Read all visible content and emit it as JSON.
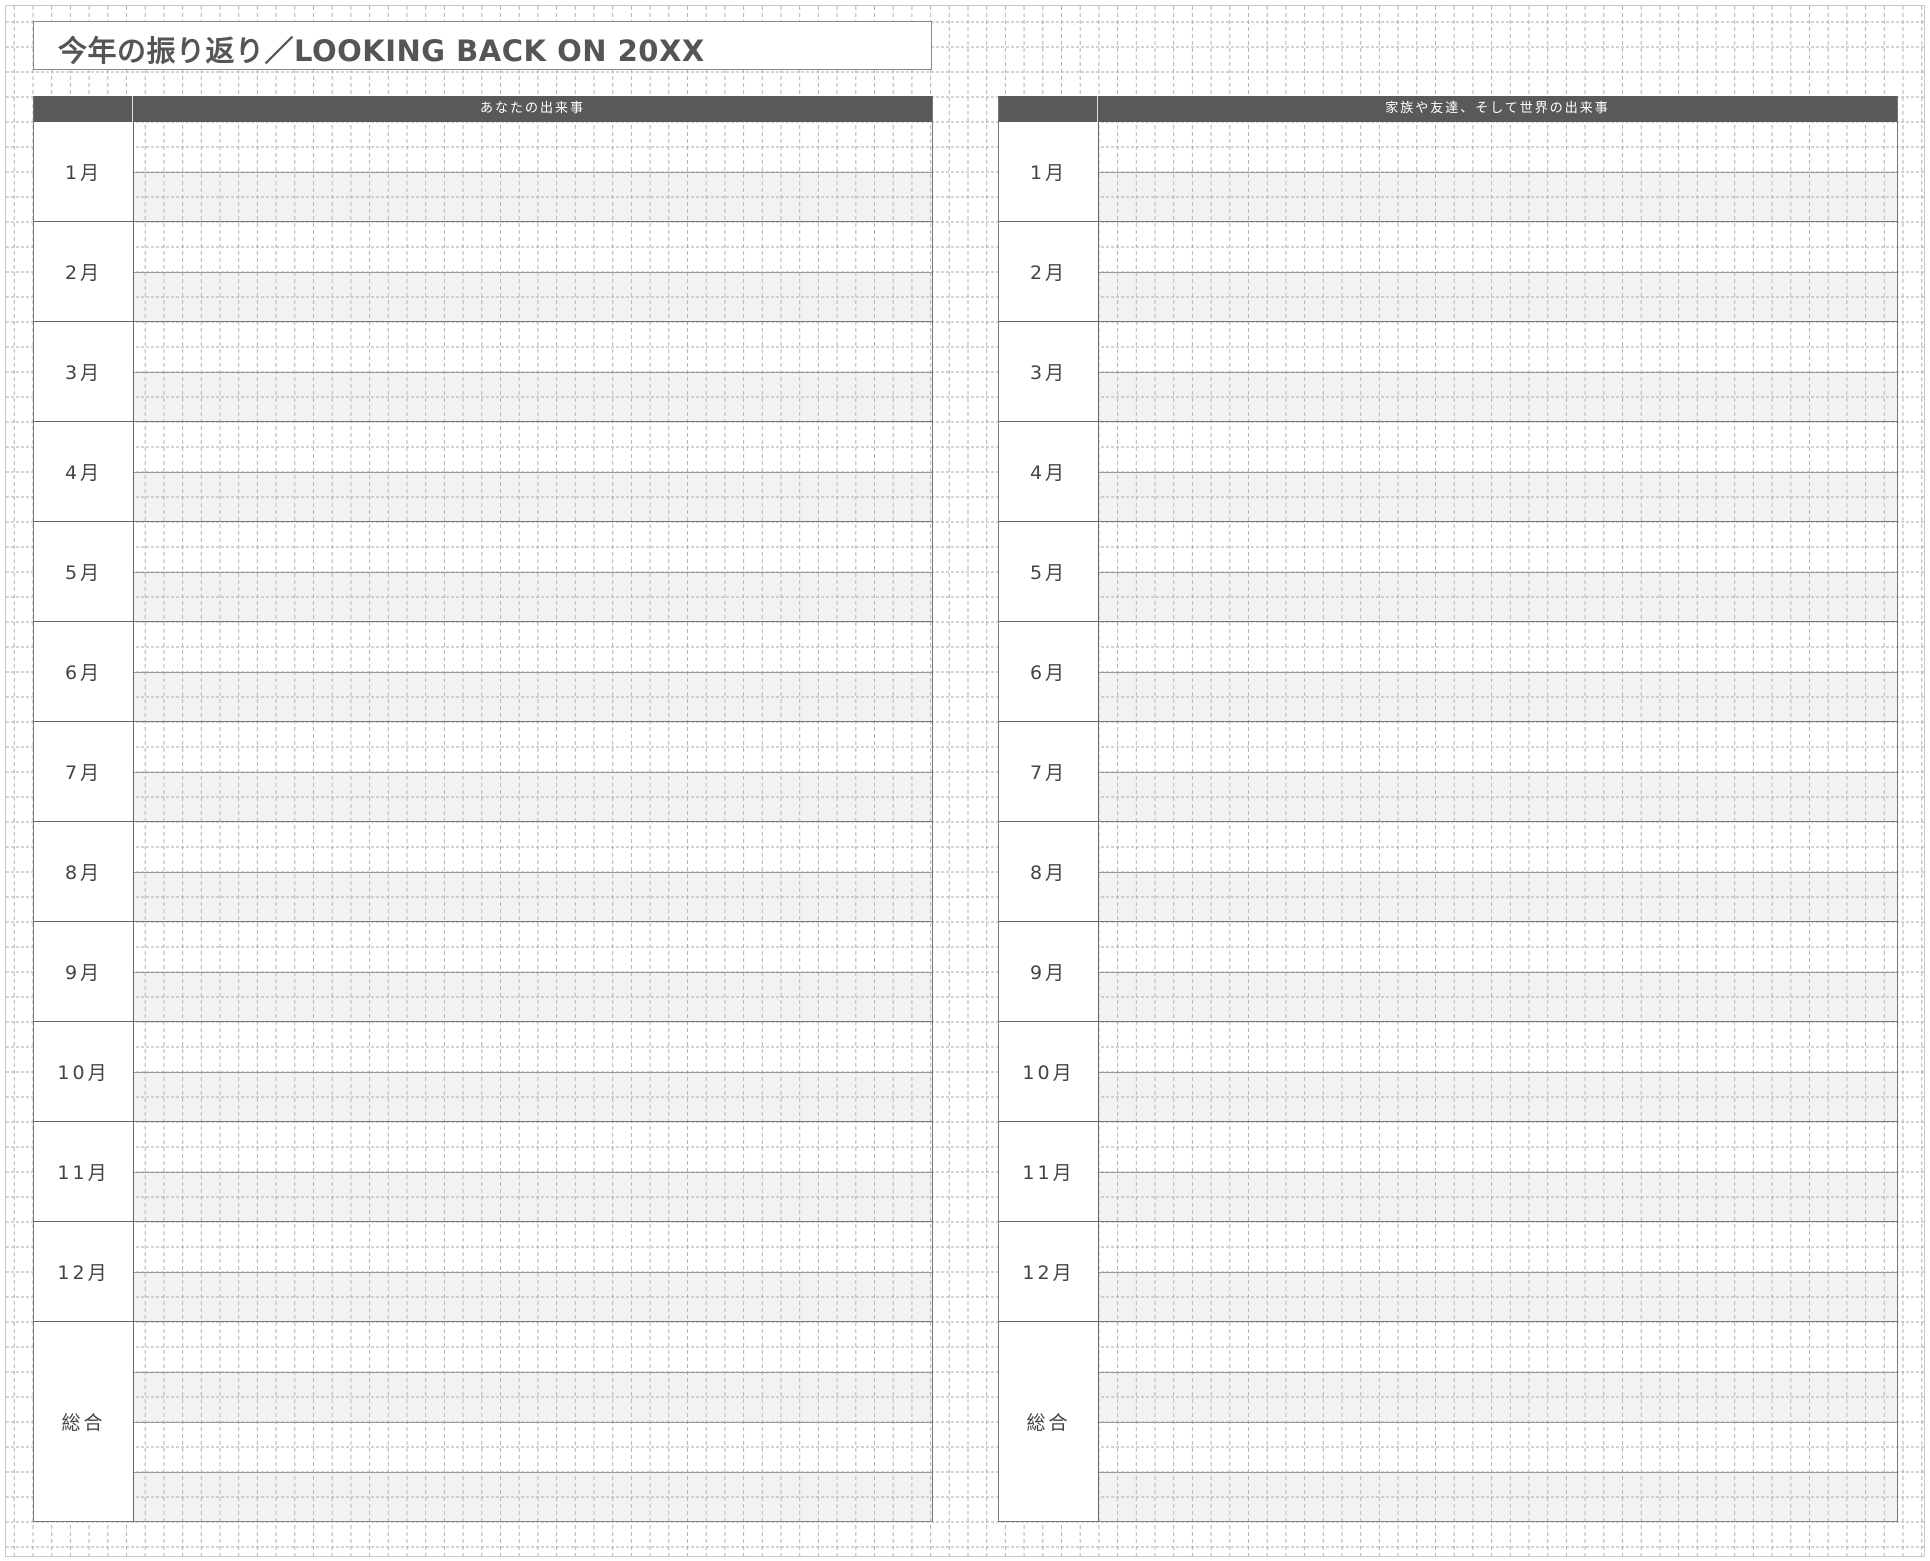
{
  "title": "今年の振り返り／LOOKING BACK ON 20XX",
  "tables": [
    {
      "header": "あなたの出来事"
    },
    {
      "header": "家族や友達、そして世界の出来事"
    }
  ],
  "months": [
    "1月",
    "2月",
    "3月",
    "4月",
    "5月",
    "6月",
    "7月",
    "8月",
    "9月",
    "10月",
    "11月",
    "12月"
  ],
  "summary_label": "総合",
  "colors": {
    "header_bg": "#5a595a",
    "band": "#f1f1f1",
    "grid": "#b0b0b0"
  }
}
